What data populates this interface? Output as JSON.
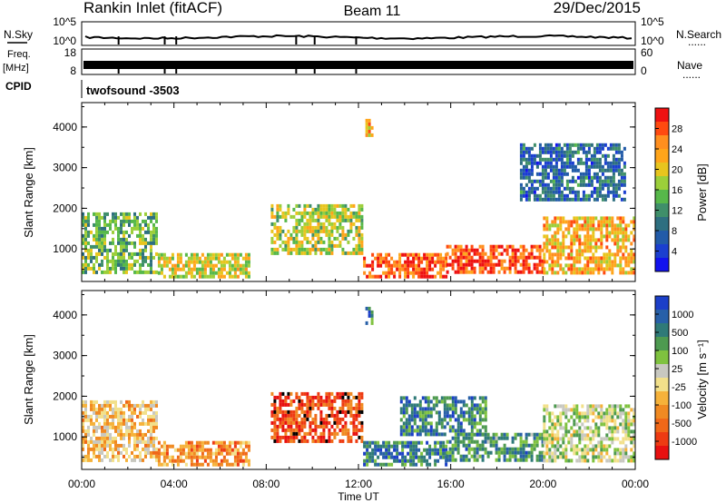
{
  "header": {
    "station": "Rankin Inlet (fitACF)",
    "beam": "Beam 11",
    "date": "29/Dec/2015"
  },
  "strips": {
    "sky_label": "N.Sky",
    "search_label": "N.Search",
    "freq_label": "Freq.",
    "freq_unit": "[MHz]",
    "nave_label": "Nave",
    "cpid_label": "CPID",
    "cpid_value": "twofsound -3503",
    "noise_ticks": [
      "10^5",
      "10^0"
    ],
    "freq_ticks": [
      "18",
      "8"
    ],
    "nave_ticks": [
      "60",
      "0"
    ],
    "dotted_marker": "......"
  },
  "chart_data": [
    {
      "type": "heatmap",
      "panel": "power",
      "ylabel": "Slant Range [km]",
      "xlabel": "",
      "ylim": [
        200,
        4600
      ],
      "yticks": [
        "1000",
        "2000",
        "3000",
        "4000"
      ],
      "x_ticks": [
        "00:00",
        "04:00",
        "08:00",
        "12:00",
        "16:00",
        "20:00",
        "00:00"
      ],
      "colorbar_label": "Power [dB]",
      "colorbar_ticks": [
        "28",
        "24",
        "20",
        "16",
        "12",
        "8",
        "4"
      ],
      "colorbar_colors": [
        "#ee1111",
        "#ff4a10",
        "#ff8f1f",
        "#ffa51a",
        "#e8c51e",
        "#9ccf3a",
        "#57b84a",
        "#3f8f6a",
        "#2e6f80",
        "#225ba8",
        "#1b3fd0",
        "#1212ee"
      ],
      "regions": [
        {
          "t0": 0.0,
          "t1": 3.3,
          "r0": 400,
          "r1": 1900,
          "lvl": 0.45
        },
        {
          "t0": 3.3,
          "t1": 7.3,
          "r0": 300,
          "r1": 900,
          "lvl": 0.6
        },
        {
          "t0": 8.2,
          "t1": 12.2,
          "r0": 900,
          "r1": 2100,
          "lvl": 0.55
        },
        {
          "t0": 12.2,
          "t1": 15.8,
          "r0": 300,
          "r1": 900,
          "lvl": 0.85
        },
        {
          "t0": 12.3,
          "t1": 12.6,
          "r0": 3800,
          "r1": 4200,
          "lvl": 0.7
        },
        {
          "t0": 15.8,
          "t1": 20.0,
          "r0": 400,
          "r1": 1100,
          "lvl": 0.9
        },
        {
          "t0": 20.0,
          "t1": 24.0,
          "r0": 400,
          "r1": 1800,
          "lvl": 0.7
        },
        {
          "t0": 19.0,
          "t1": 23.5,
          "r0": 2200,
          "r1": 3600,
          "lvl": 0.25
        }
      ]
    },
    {
      "type": "heatmap",
      "panel": "velocity",
      "ylabel": "Slant Range [km]",
      "xlabel": "Time UT",
      "ylim": [
        200,
        4600
      ],
      "yticks": [
        "1000",
        "2000",
        "3000",
        "4000"
      ],
      "x_ticks": [
        "00:00",
        "04:00",
        "08:00",
        "12:00",
        "16:00",
        "20:00",
        "00:00"
      ],
      "colorbar_label": "Velocity [m s⁻¹]",
      "colorbar_ticks": [
        "1000",
        "500",
        "100",
        "25",
        "-25",
        "-100",
        "-500",
        "-1000"
      ],
      "colorbar_colors": [
        "#1c3fc8",
        "#2860a8",
        "#2f7a78",
        "#4e9a50",
        "#7fc23f",
        "#c8c8c0",
        "#f2e08a",
        "#f6b23a",
        "#f08a22",
        "#f06818",
        "#ee3b12",
        "#e81010"
      ],
      "regions": [
        {
          "t0": 0.0,
          "t1": 3.3,
          "r0": 400,
          "r1": 1900,
          "lvl": 0.4
        },
        {
          "t0": 3.3,
          "t1": 7.3,
          "r0": 300,
          "r1": 900,
          "lvl": 0.3
        },
        {
          "t0": 8.2,
          "t1": 12.2,
          "r0": 900,
          "r1": 2100,
          "lvl": 0.15
        },
        {
          "t0": 12.2,
          "t1": 15.8,
          "r0": 300,
          "r1": 900,
          "lvl": 0.8
        },
        {
          "t0": 12.3,
          "t1": 12.6,
          "r0": 3800,
          "r1": 4200,
          "lvl": 0.8
        },
        {
          "t0": 13.8,
          "t1": 17.5,
          "r0": 1100,
          "r1": 2000,
          "lvl": 0.78
        },
        {
          "t0": 15.8,
          "t1": 20.0,
          "r0": 400,
          "r1": 1100,
          "lvl": 0.75
        },
        {
          "t0": 20.0,
          "t1": 24.0,
          "r0": 400,
          "r1": 1800,
          "lvl": 0.55
        }
      ]
    }
  ]
}
